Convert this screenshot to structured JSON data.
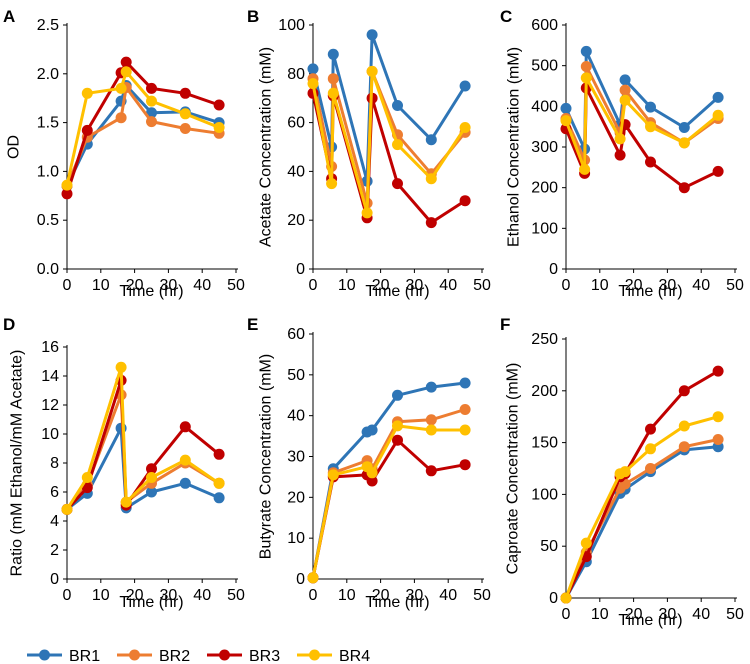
{
  "colors": {
    "BR1": "#2e75b6",
    "BR2": "#ed7d31",
    "BR3": "#c00000",
    "BR4": "#ffc000"
  },
  "legend": [
    "BR1",
    "BR2",
    "BR3",
    "BR4"
  ],
  "chart_data": [
    {
      "panel": "A",
      "type": "line",
      "xlabel": "Time (hr)",
      "ylabel": "OD",
      "xlim": [
        0,
        50
      ],
      "ylim": [
        0,
        2.5
      ],
      "xticks": [
        "0",
        "10",
        "20",
        "30",
        "40",
        "50"
      ],
      "yticks": [
        "0.0",
        "0.5",
        "1.0",
        "1.5",
        "2.0",
        "2.5"
      ],
      "series": [
        {
          "name": "BR1",
          "x": [
            0,
            6,
            16,
            17.5,
            25,
            35,
            45
          ],
          "y": [
            0.85,
            1.28,
            1.72,
            1.88,
            1.6,
            1.61,
            1.5
          ]
        },
        {
          "name": "BR2",
          "x": [
            0,
            6,
            16,
            17.5,
            25,
            35,
            45
          ],
          "y": [
            0.85,
            1.35,
            1.55,
            1.86,
            1.51,
            1.44,
            1.39
          ]
        },
        {
          "name": "BR3",
          "x": [
            0,
            6,
            16,
            17.5,
            25,
            35,
            45
          ],
          "y": [
            0.77,
            1.42,
            2.01,
            2.12,
            1.85,
            1.8,
            1.68
          ]
        },
        {
          "name": "BR4",
          "x": [
            0,
            6,
            16,
            17.5,
            25,
            35,
            45
          ],
          "y": [
            0.86,
            1.8,
            1.85,
            2.02,
            1.72,
            1.59,
            1.45
          ]
        }
      ]
    },
    {
      "panel": "B",
      "type": "line",
      "xlabel": "Time (hr)",
      "ylabel": "Acetate Concentration (mM)",
      "xlim": [
        0,
        50
      ],
      "ylim": [
        0,
        100
      ],
      "xticks": [
        "0",
        "10",
        "20",
        "30",
        "40",
        "50"
      ],
      "yticks": [
        "0",
        "20",
        "40",
        "60",
        "80",
        "100"
      ],
      "series": [
        {
          "name": "BR1",
          "x": [
            0,
            5.5,
            6,
            16,
            17.5,
            25,
            35,
            45
          ],
          "y": [
            82,
            50,
            88,
            36,
            96,
            67,
            53,
            75
          ]
        },
        {
          "name": "BR2",
          "x": [
            0,
            5.5,
            6,
            16,
            17.5,
            25,
            35,
            45
          ],
          "y": [
            78,
            42,
            78,
            27,
            81,
            55,
            39,
            56
          ]
        },
        {
          "name": "BR3",
          "x": [
            0,
            5.5,
            6,
            16,
            17.5,
            25,
            35,
            45
          ],
          "y": [
            72,
            37,
            71,
            21,
            70,
            35,
            19,
            28
          ]
        },
        {
          "name": "BR4",
          "x": [
            0,
            5.5,
            6,
            16,
            17.5,
            25,
            35,
            45
          ],
          "y": [
            76,
            35,
            72,
            23,
            81,
            51,
            37,
            58
          ]
        }
      ]
    },
    {
      "panel": "C",
      "type": "line",
      "xlabel": "Time (hr)",
      "ylabel": "Ethanol Concentration (mM)",
      "xlim": [
        0,
        50
      ],
      "ylim": [
        0,
        600
      ],
      "xticks": [
        "0",
        "10",
        "20",
        "30",
        "40",
        "50"
      ],
      "yticks": [
        "0",
        "100",
        "200",
        "300",
        "400",
        "500",
        "600"
      ],
      "series": [
        {
          "name": "BR1",
          "x": [
            0,
            5.5,
            6,
            16,
            17.5,
            25,
            35,
            45
          ],
          "y": [
            395,
            295,
            535,
            355,
            465,
            398,
            348,
            422
          ]
        },
        {
          "name": "BR2",
          "x": [
            0,
            5.5,
            6,
            16,
            17.5,
            25,
            35,
            45
          ],
          "y": [
            370,
            268,
            498,
            335,
            440,
            360,
            310,
            370
          ]
        },
        {
          "name": "BR3",
          "x": [
            0,
            5.5,
            6,
            16,
            17.5,
            25,
            35,
            45
          ],
          "y": [
            345,
            235,
            445,
            280,
            355,
            263,
            200,
            240
          ]
        },
        {
          "name": "BR4",
          "x": [
            0,
            5.5,
            6,
            16,
            17.5,
            25,
            35,
            45
          ],
          "y": [
            365,
            245,
            470,
            320,
            415,
            350,
            310,
            378
          ]
        }
      ]
    },
    {
      "panel": "D",
      "type": "line",
      "xlabel": "Time (hr)",
      "ylabel": "Ratio (mM Ethanol/mM Acetate)",
      "xlim": [
        0,
        50
      ],
      "ylim": [
        0,
        16
      ],
      "xticks": [
        "0",
        "10",
        "20",
        "30",
        "40",
        "50"
      ],
      "yticks": [
        "0",
        "2",
        "4",
        "6",
        "8",
        "10",
        "12",
        "14",
        "16"
      ],
      "series": [
        {
          "name": "BR1",
          "x": [
            0,
            6,
            16,
            17.5,
            25,
            35,
            45
          ],
          "y": [
            4.8,
            5.9,
            10.4,
            4.9,
            6.0,
            6.6,
            5.6
          ]
        },
        {
          "name": "BR2",
          "x": [
            0,
            6,
            16,
            17.5,
            25,
            35,
            45
          ],
          "y": [
            4.8,
            6.5,
            12.7,
            5.3,
            6.6,
            8.0,
            6.6
          ]
        },
        {
          "name": "BR3",
          "x": [
            0,
            6,
            16,
            17.5,
            25,
            35,
            45
          ],
          "y": [
            4.8,
            6.3,
            13.7,
            5.1,
            7.6,
            10.5,
            8.6
          ]
        },
        {
          "name": "BR4",
          "x": [
            0,
            6,
            16,
            17.5,
            25,
            35,
            45
          ],
          "y": [
            4.8,
            7.0,
            14.6,
            5.3,
            7.0,
            8.2,
            6.6
          ]
        }
      ]
    },
    {
      "panel": "E",
      "type": "line",
      "xlabel": "Time (hr)",
      "ylabel": "Butyrate Concentration (mM)",
      "xlim": [
        0,
        50
      ],
      "ylim": [
        0,
        60
      ],
      "xticks": [
        "0",
        "10",
        "20",
        "30",
        "40",
        "50"
      ],
      "yticks": [
        "0",
        "10",
        "20",
        "30",
        "40",
        "50",
        "60"
      ],
      "series": [
        {
          "name": "BR1",
          "x": [
            0,
            6,
            16,
            17.5,
            25,
            35,
            45
          ],
          "y": [
            0.3,
            27,
            36,
            36.5,
            45,
            47,
            48
          ]
        },
        {
          "name": "BR2",
          "x": [
            0,
            6,
            16,
            17.5,
            25,
            35,
            45
          ],
          "y": [
            0.3,
            26,
            29,
            27,
            38.5,
            39,
            41.5
          ]
        },
        {
          "name": "BR3",
          "x": [
            0,
            6,
            16,
            17.5,
            25,
            35,
            45
          ],
          "y": [
            0.3,
            25,
            25.5,
            24,
            34,
            26.5,
            28
          ]
        },
        {
          "name": "BR4",
          "x": [
            0,
            6,
            16,
            17.5,
            25,
            35,
            45
          ],
          "y": [
            0.3,
            25.5,
            27.5,
            26,
            37.5,
            36.5,
            36.5
          ]
        }
      ]
    },
    {
      "panel": "F",
      "type": "line",
      "xlabel": "Time (hr)",
      "ylabel": "Caproate Concentration (mM)",
      "xlim": [
        0,
        50
      ],
      "ylim": [
        0,
        250
      ],
      "xticks": [
        "0",
        "10",
        "20",
        "30",
        "40",
        "50"
      ],
      "yticks": [
        "0",
        "50",
        "100",
        "150",
        "200",
        "250"
      ],
      "series": [
        {
          "name": "BR1",
          "x": [
            0,
            6,
            16,
            17.5,
            25,
            35,
            45
          ],
          "y": [
            0,
            35,
            101,
            105,
            122,
            143,
            146
          ]
        },
        {
          "name": "BR2",
          "x": [
            0,
            6,
            16,
            17.5,
            25,
            35,
            45
          ],
          "y": [
            0,
            44,
            106,
            110,
            125,
            146,
            153
          ]
        },
        {
          "name": "BR3",
          "x": [
            0,
            6,
            16,
            17.5,
            25,
            35,
            45
          ],
          "y": [
            0,
            40,
            117,
            120,
            163,
            200,
            219
          ]
        },
        {
          "name": "BR4",
          "x": [
            0,
            6,
            16,
            17.5,
            25,
            35,
            45
          ],
          "y": [
            0,
            53,
            120,
            122,
            144,
            166,
            175
          ]
        }
      ]
    }
  ]
}
